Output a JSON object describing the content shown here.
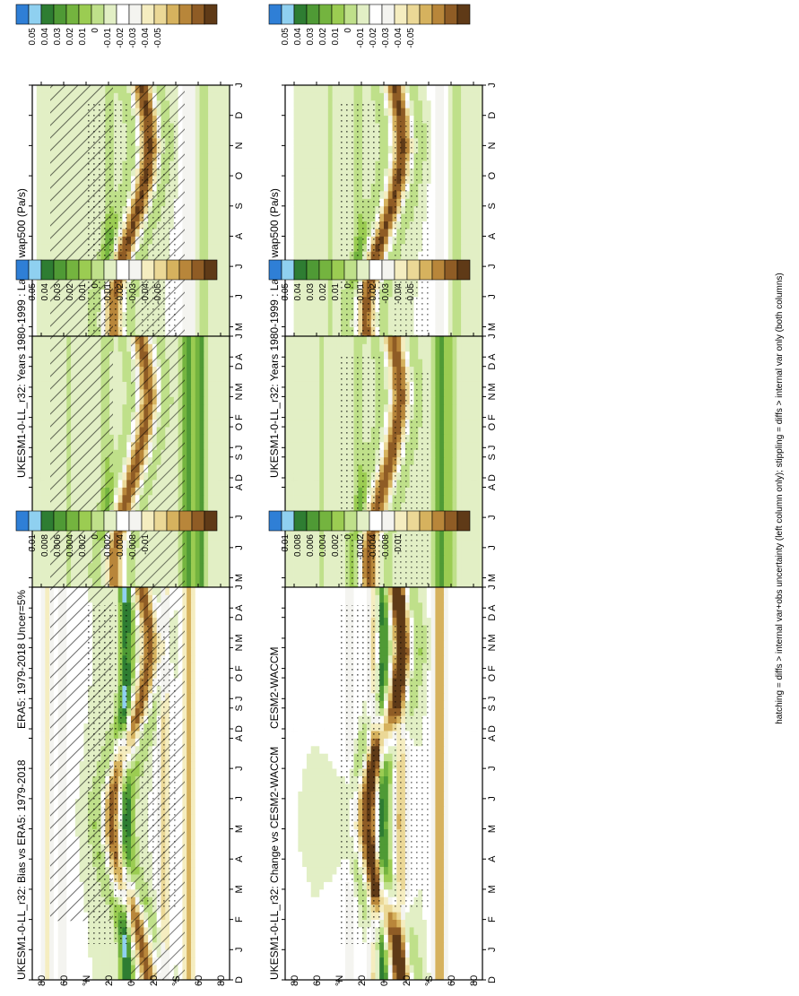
{
  "figure": {
    "footnote": "hatching = diffs > internal var+obs uncertainty (left column only); stippling = diffs > internal var only (both columns)"
  },
  "scales": {
    "field": {
      "labels": [
        "0.05",
        "0.04",
        "0.03",
        "0.02",
        "0.01",
        "0",
        "-0.01",
        "-0.02",
        "-0.03",
        "-0.04",
        "-0.05"
      ],
      "colors": [
        "#2f7fd6",
        "#8fd0f0",
        "#2e7d32",
        "#4f9a35",
        "#74b43f",
        "#9bcc52",
        "#bfe08a",
        "#e2efc5",
        "#ffffff",
        "#f4f4f0",
        "#f5edc0",
        "#ebd896",
        "#d6b25e",
        "#b8863a",
        "#8f5c25",
        "#5f3a17"
      ]
    },
    "diff": {
      "labels": [
        "0.01",
        "0.008",
        "0.006",
        "0.004",
        "0.002",
        "0",
        "-0.002",
        "-0.004",
        "-0.008",
        "-0.01"
      ],
      "colors": [
        "#2f7fd6",
        "#8fd0f0",
        "#2e7d32",
        "#4f9a35",
        "#74b43f",
        "#9bcc52",
        "#bfe08a",
        "#e2efc5",
        "#ffffff",
        "#f4f4f0",
        "#f5edc0",
        "#ebd896",
        "#d6b25e",
        "#b8863a",
        "#8f5c25",
        "#5f3a17"
      ]
    }
  },
  "axes": {
    "months": [
      "D",
      "J",
      "F",
      "M",
      "A",
      "M",
      "J",
      "J",
      "A",
      "S",
      "O",
      "N",
      "D",
      "J"
    ],
    "lat_labels": [
      "80",
      "60",
      "°N",
      "20",
      "0",
      "20",
      "°S",
      "60",
      "80"
    ]
  },
  "chart_data": [
    {
      "type": "heatmap",
      "title": "UKESM1-0-LL_r32: Years 1980-1999 : Land : wap500 (Pa/s)",
      "scale": "field",
      "column": "left",
      "row": 1,
      "hatching": true,
      "stippling": true,
      "x": "month",
      "y": "latitude",
      "itcz": {
        "anchor_lat": [
          -15,
          -10,
          -3,
          6,
          13,
          17,
          16,
          10,
          2,
          -7,
          -13,
          -17,
          -15,
          -10
        ],
        "amplitude": 0.05,
        "width": 7
      },
      "bands": [
        {
          "lat": 20,
          "value": 0.022
        },
        {
          "lat": 50,
          "value": 0.012
        },
        {
          "lat": -52,
          "value": -0.022
        },
        {
          "lat": -66,
          "value": 0.02
        }
      ]
    },
    {
      "type": "heatmap",
      "title": "UKESM1-0-LL_r32: Years 1980-1999 : Land : wap500 (Pa/s)",
      "scale": "field",
      "column": "right",
      "row": 1,
      "hatching": false,
      "stippling": true,
      "x": "month",
      "y": "latitude",
      "itcz": {
        "anchor_lat": [
          -15,
          -10,
          -3,
          6,
          13,
          17,
          16,
          10,
          2,
          -7,
          -13,
          -17,
          -15,
          -10
        ],
        "amplitude": 0.05,
        "width": 7
      },
      "bands": [
        {
          "lat": 22,
          "value": 0.02
        },
        {
          "lat": 48,
          "value": 0.012
        },
        {
          "lat": -50,
          "value": -0.022
        },
        {
          "lat": -66,
          "value": 0.02
        }
      ]
    },
    {
      "type": "heatmap",
      "title": "ERA5: 1979-2018 Uncer=5%",
      "scale": "field",
      "column": "left",
      "row": 2,
      "hatching": true,
      "stippling": false,
      "x": "month",
      "y": "latitude",
      "itcz": {
        "anchor_lat": [
          -14,
          -9,
          -2,
          6,
          12,
          16,
          15,
          9,
          1,
          -6,
          -12,
          -16,
          -14,
          -9
        ],
        "amplitude": 0.045,
        "width": 7
      },
      "bands": [
        {
          "lat": 22,
          "value": 0.022
        },
        {
          "lat": 55,
          "value": 0.014
        },
        {
          "lat": -50,
          "value": 0.052
        },
        {
          "lat": -62,
          "value": 0.05
        }
      ]
    },
    {
      "type": "heatmap",
      "title": "CESM2-WACCM",
      "scale": "field",
      "column": "right",
      "row": 2,
      "hatching": false,
      "stippling": true,
      "x": "month",
      "y": "latitude",
      "itcz": {
        "anchor_lat": [
          -13,
          -9,
          -2,
          5,
          11,
          14,
          14,
          8,
          1,
          -6,
          -11,
          -15,
          -13,
          -9
        ],
        "amplitude": 0.048,
        "width": 7
      },
      "bands": [
        {
          "lat": 22,
          "value": 0.02
        },
        {
          "lat": 55,
          "value": 0.014
        },
        {
          "lat": -50,
          "value": 0.05
        },
        {
          "lat": -60,
          "value": 0.03
        }
      ]
    },
    {
      "type": "heatmap",
      "title": "UKESM1-0-LL_r32: Bias vs ERA5: 1979-2018",
      "scale": "diff",
      "column": "left",
      "row": 3,
      "hatching": true,
      "stippling": true,
      "x": "month",
      "y": "latitude",
      "itcz": {
        "anchor_lat": [
          -15,
          -10,
          -3,
          6,
          13,
          17,
          16,
          10,
          2,
          -7,
          -13,
          -17,
          -15,
          -10
        ],
        "amplitude": 0.01,
        "width": 6
      },
      "bands": [
        {
          "lat": 5,
          "value": 0.011
        },
        {
          "lat": -30,
          "value": -0.009
        },
        {
          "lat": -52,
          "value": -0.011
        },
        {
          "lat": 60,
          "value": -0.004
        },
        {
          "lat": 75,
          "value": -0.006
        }
      ]
    },
    {
      "type": "heatmap",
      "title": "UKESM1-0-LL_r32: Change vs CESM2-WACCM",
      "scale": "diff",
      "column": "right",
      "row": 3,
      "hatching": false,
      "stippling": true,
      "x": "month",
      "y": "latitude",
      "itcz": {
        "anchor_lat": [
          -15,
          -10,
          -3,
          6,
          13,
          17,
          16,
          10,
          2,
          -7,
          -13,
          -17,
          -15,
          -10
        ],
        "amplitude": 0.01,
        "width": 6
      },
      "bands": [
        {
          "lat": 2,
          "value": 0.011
        },
        {
          "lat": 8,
          "value": -0.011
        },
        {
          "lat": -15,
          "value": -0.011
        },
        {
          "lat": -50,
          "value": -0.012
        },
        {
          "lat": 30,
          "value": -0.004
        }
      ]
    }
  ]
}
